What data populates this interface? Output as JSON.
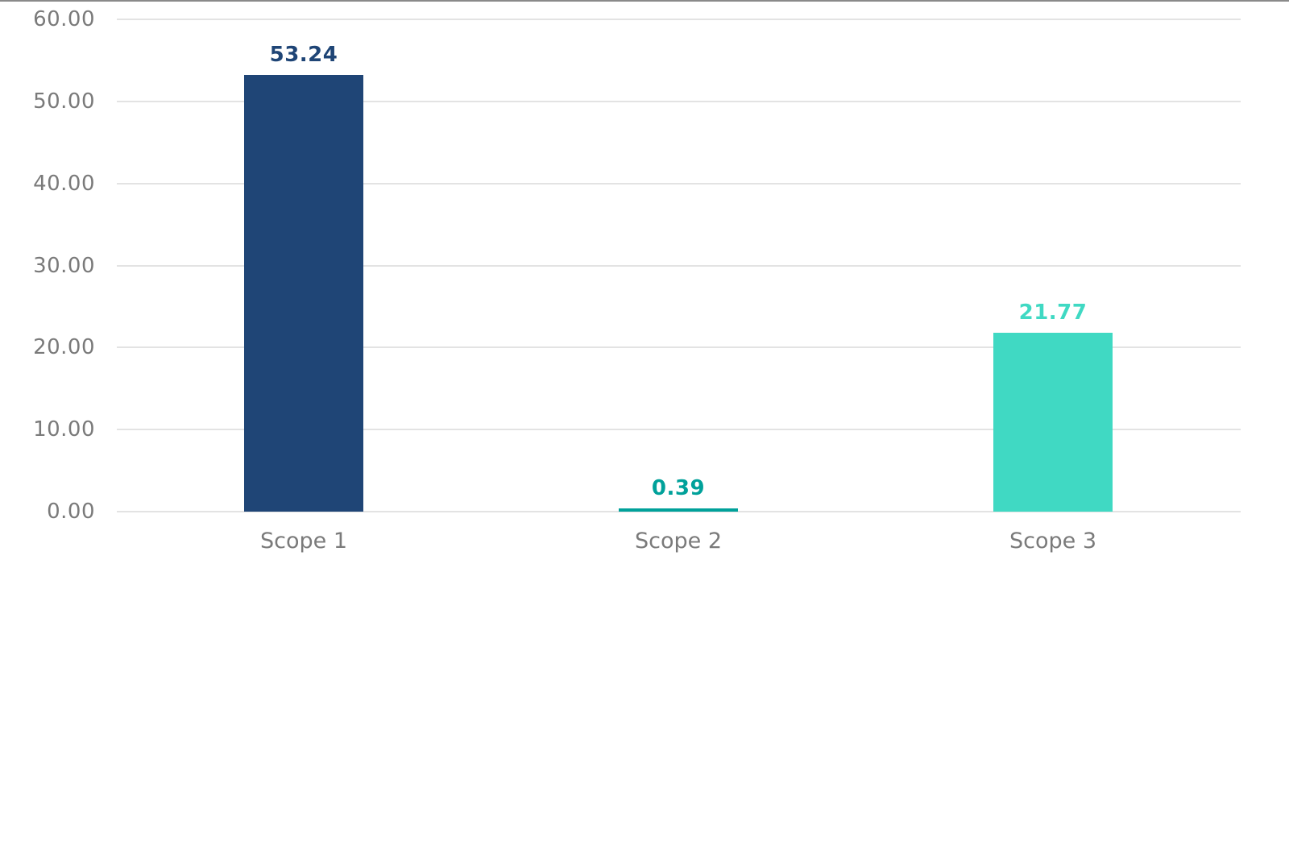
{
  "chart_data": {
    "type": "bar",
    "title": "",
    "xlabel": "",
    "ylabel": "",
    "categories": [
      "Scope 1",
      "Scope 2",
      "Scope 3"
    ],
    "values": [
      53.24,
      0.39,
      21.77
    ],
    "value_labels": [
      "53.24",
      "0.39",
      "21.77"
    ],
    "colors": [
      "#1f4576",
      "#00a19a",
      "#40d9c3"
    ],
    "ylim": [
      0,
      60
    ],
    "yticks": [
      "0.00",
      "10.00",
      "20.00",
      "30.00",
      "40.00",
      "50.00",
      "60.00"
    ],
    "grid": true,
    "legend": null
  },
  "theme": {
    "gridline_color": "#e3e3e3",
    "tick_color": "#7a7a7a",
    "top_border_color": "#8a8a8a"
  }
}
